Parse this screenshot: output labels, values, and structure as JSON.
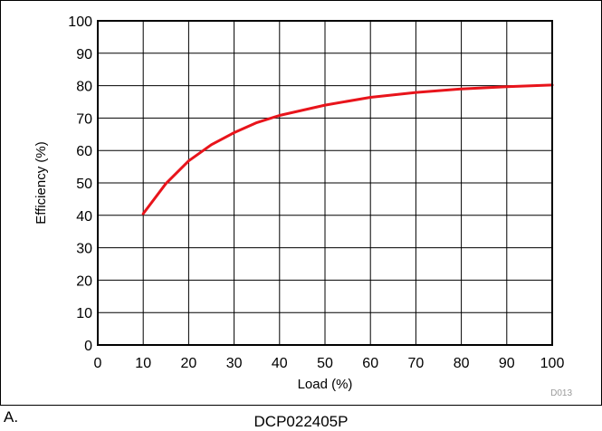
{
  "panel_label": "A.",
  "figure_code": "D013",
  "caption": "DCP022405P",
  "colors": {
    "line": "#e8141b",
    "grid": "#000000",
    "background": "#ffffff"
  },
  "chart_data": {
    "type": "line",
    "title": "",
    "xlabel": "Load (%)",
    "ylabel": "Efficiency (%)",
    "xlim": [
      0,
      100
    ],
    "ylim": [
      0,
      100
    ],
    "xticks": [
      "0",
      "10",
      "20",
      "30",
      "40",
      "50",
      "60",
      "70",
      "80",
      "90",
      "100"
    ],
    "yticks": [
      "0",
      "10",
      "20",
      "30",
      "40",
      "50",
      "60",
      "70",
      "80",
      "90",
      "100"
    ],
    "grid": true,
    "legend": "none",
    "series": [
      {
        "x": [
          10,
          15,
          20,
          25,
          30,
          35,
          40,
          50,
          60,
          70,
          80,
          90,
          100
        ],
        "y": [
          40.5,
          49.8,
          56.8,
          61.8,
          65.5,
          68.6,
          70.8,
          74.0,
          76.4,
          77.9,
          79.0,
          79.7,
          80.2
        ]
      }
    ]
  }
}
